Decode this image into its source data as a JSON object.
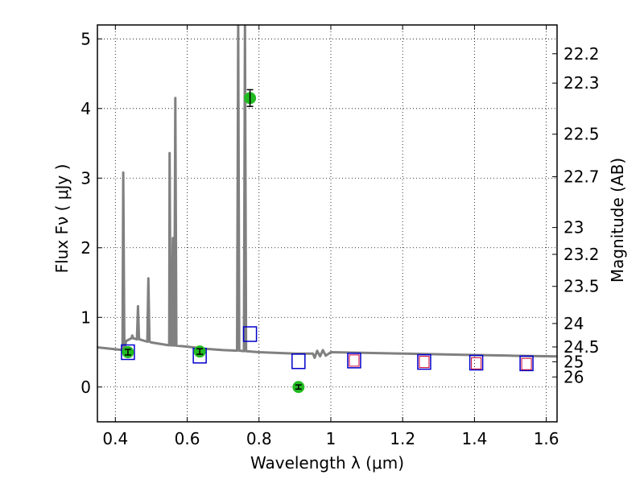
{
  "chart_data": {
    "type": "scatter",
    "title": "",
    "xlabel": "Wavelength  λ (μm)",
    "ylabel": "Flux  Fν  ( μJy )",
    "ylabel_right": "Magnitude (AB)",
    "xlim": [
      0.35,
      1.63
    ],
    "ylim": [
      -0.5,
      5.2
    ],
    "grid": true,
    "x_ticks": [
      {
        "value": 0.4,
        "label": "0.4"
      },
      {
        "value": 0.6,
        "label": "0.6"
      },
      {
        "value": 0.8,
        "label": "0.8"
      },
      {
        "value": 1.0,
        "label": "1"
      },
      {
        "value": 1.2,
        "label": "1.2"
      },
      {
        "value": 1.4,
        "label": "1.4"
      },
      {
        "value": 1.6,
        "label": "1.6"
      }
    ],
    "y_ticks": [
      {
        "value": 0,
        "label": "0"
      },
      {
        "value": 1,
        "label": "1"
      },
      {
        "value": 2,
        "label": "2"
      },
      {
        "value": 3,
        "label": "3"
      },
      {
        "value": 4,
        "label": "4"
      },
      {
        "value": 5,
        "label": "5"
      }
    ],
    "mag_ticks": [
      {
        "value": 22.2,
        "label": "22.2"
      },
      {
        "value": 22.3,
        "label": "22.3"
      },
      {
        "value": 22.5,
        "label": "22.5"
      },
      {
        "value": 22.7,
        "label": "22.7"
      },
      {
        "value": 23.0,
        "label": "23"
      },
      {
        "value": 23.2,
        "label": "23.2"
      },
      {
        "value": 23.5,
        "label": "23.5"
      },
      {
        "value": 24.0,
        "label": "24"
      },
      {
        "value": 24.5,
        "label": "24.5"
      },
      {
        "value": 25.0,
        "label": "25"
      },
      {
        "value": 26.0,
        "label": "26"
      }
    ],
    "series": [
      {
        "kind": "model_spectrum",
        "color": "#808080",
        "continuum": [
          [
            0.35,
            0.57
          ],
          [
            0.42,
            0.5
          ],
          [
            0.43,
            0.66
          ],
          [
            0.445,
            0.7
          ],
          [
            0.47,
            0.68
          ],
          [
            0.5,
            0.64
          ],
          [
            0.55,
            0.6
          ],
          [
            0.6,
            0.58
          ],
          [
            0.65,
            0.55
          ],
          [
            0.7,
            0.53
          ],
          [
            0.75,
            0.52
          ],
          [
            0.8,
            0.5
          ],
          [
            0.85,
            0.49
          ],
          [
            0.9,
            0.48
          ],
          [
            0.95,
            0.48
          ],
          [
            1.0,
            0.5
          ],
          [
            1.1,
            0.49
          ],
          [
            1.2,
            0.48
          ],
          [
            1.3,
            0.47
          ],
          [
            1.4,
            0.46
          ],
          [
            1.5,
            0.45
          ],
          [
            1.63,
            0.44
          ]
        ],
        "emission_lines": [
          [
            0.422,
            3.08
          ],
          [
            0.447,
            0.74
          ],
          [
            0.463,
            1.16
          ],
          [
            0.492,
            1.56
          ],
          [
            0.551,
            3.36
          ],
          [
            0.56,
            2.14
          ],
          [
            0.567,
            4.15
          ],
          [
            0.742,
            5.2
          ],
          [
            0.761,
            5.2
          ]
        ]
      },
      {
        "kind": "observed",
        "color": "#22bb22",
        "points": [
          {
            "x": 0.435,
            "y": 0.5,
            "err": 0.04
          },
          {
            "x": 0.635,
            "y": 0.51,
            "err": 0.04
          },
          {
            "x": 0.775,
            "y": 4.15,
            "err": 0.12
          },
          {
            "x": 0.91,
            "y": 0.0,
            "err": 0.03
          }
        ]
      },
      {
        "kind": "model_photometry",
        "color": "#0000cc",
        "points": [
          {
            "x": 0.435,
            "y": 0.5
          },
          {
            "x": 0.635,
            "y": 0.45
          },
          {
            "x": 0.775,
            "y": 0.76
          },
          {
            "x": 0.91,
            "y": 0.37
          },
          {
            "x": 1.065,
            "y": 0.38
          },
          {
            "x": 1.26,
            "y": 0.36
          },
          {
            "x": 1.405,
            "y": 0.35
          },
          {
            "x": 1.545,
            "y": 0.34
          }
        ]
      },
      {
        "kind": "model_photometry_nir",
        "color": "#cc0033",
        "points": [
          {
            "x": 1.065,
            "y": 0.38
          },
          {
            "x": 1.26,
            "y": 0.36
          },
          {
            "x": 1.405,
            "y": 0.34
          },
          {
            "x": 1.545,
            "y": 0.33
          }
        ]
      }
    ]
  }
}
